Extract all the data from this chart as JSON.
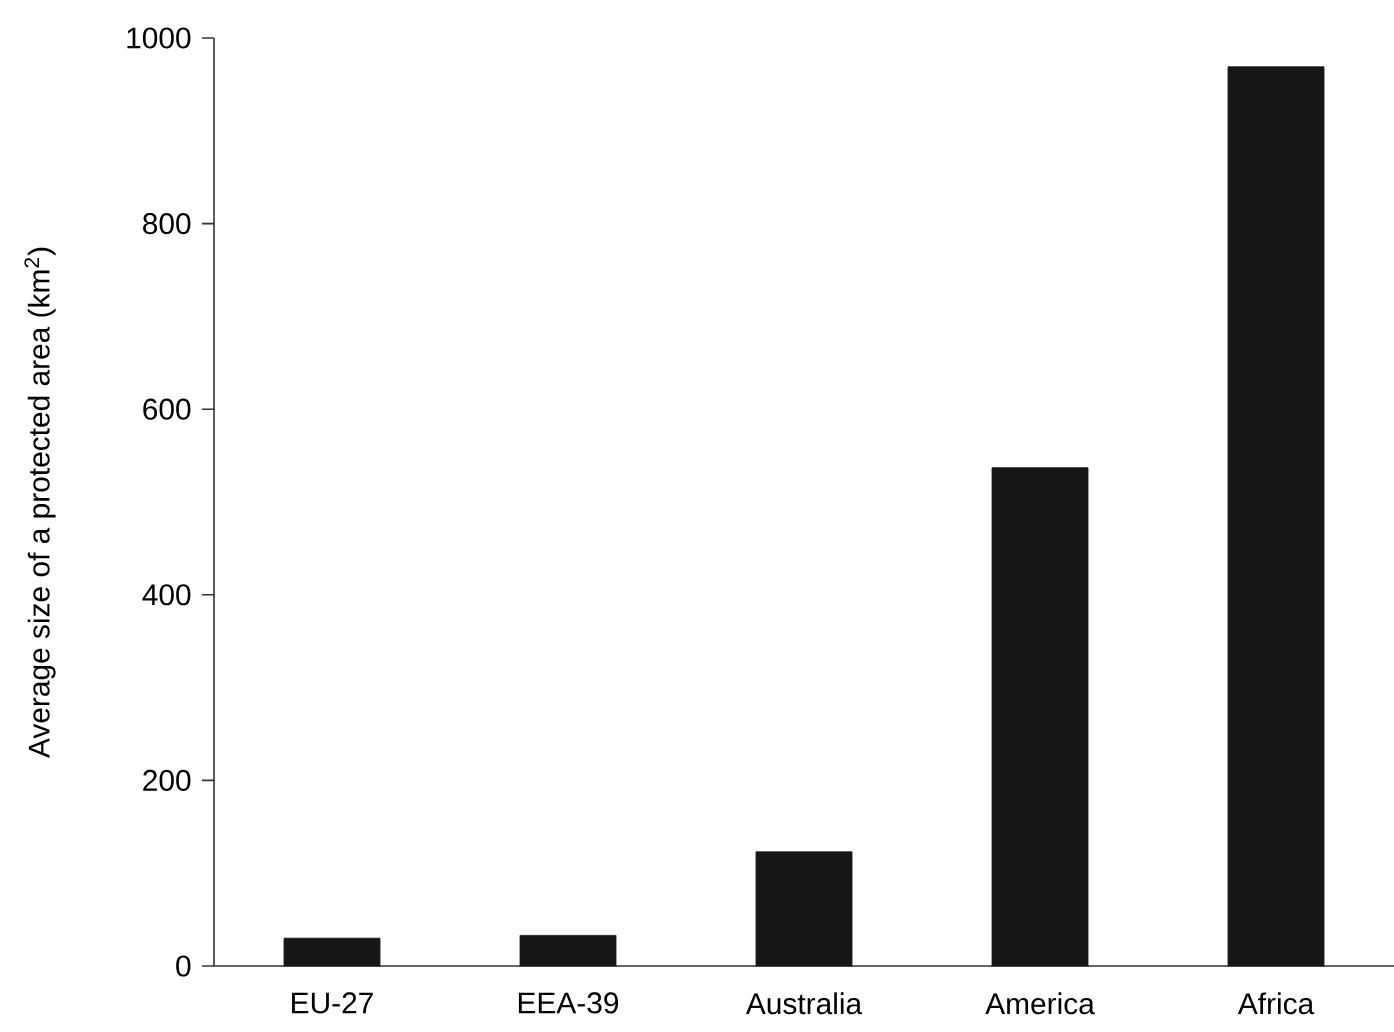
{
  "chart_data": {
    "type": "bar",
    "ylabel": "Average size of a protected area (km$^{2}$)",
    "categories": [
      "EU-27",
      "EEA-39",
      "Australia",
      "America",
      "Africa"
    ],
    "values": [
      30,
      33,
      123,
      537,
      969
    ],
    "color": "#161616",
    "ylim": [
      0,
      1000
    ],
    "yticks": [
      0,
      200,
      400,
      600,
      800,
      1000
    ],
    "grid": false
  }
}
